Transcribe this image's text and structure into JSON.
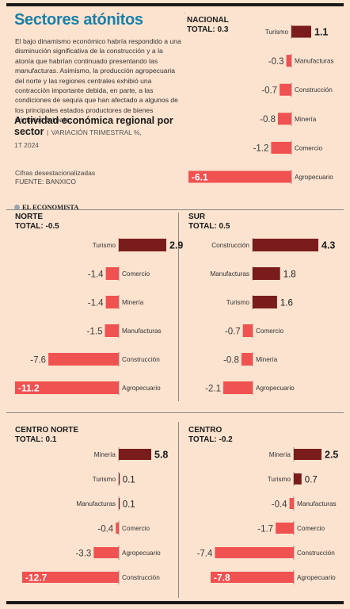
{
  "title": "Sectores atónitos",
  "intro": "El bajo dinamismo económico habría respondido a una disminución significativa de la construcción y a la atonía que habrían continuado presentando las manufacturas. Asimismo, la producción agropecuaria del norte y las regiones centrales exhibió una contracción importante debida, en parte, a las condiciones de sequía que han afectado a algunos de los principales estados productores de bienes primarios del país.",
  "subtitle": {
    "main": "Actividad económica regional por sector",
    "separator": "|",
    "unit": "VARIACIÓN TRIMESTRAL %,",
    "period": "1T 2024"
  },
  "note": {
    "line1": "Cifras desestacionalizadas",
    "line2": "FUENTE: BANXICO"
  },
  "brand": "EL ECONOMISTA",
  "colors": {
    "positive": "#7a1c1c",
    "negative": "#f05151",
    "title": "#1a7fa8",
    "background": "#fbe3cf"
  },
  "chart_data": [
    {
      "type": "bar",
      "region": "NACIONAL",
      "total_label": "TOTAL: 0.3",
      "categories": [
        "Turismo",
        "Manufacturas",
        "Construcción",
        "Minería",
        "Comercio",
        "Agropecuario"
      ],
      "values": [
        1.1,
        -0.3,
        -0.7,
        -0.8,
        -1.2,
        -6.1
      ],
      "labels": [
        "1.1",
        "-0.3",
        "-0.7",
        "-0.8",
        "-1.2",
        "-6.1"
      ]
    },
    {
      "type": "bar",
      "region": "NORTE",
      "total_label": "TOTAL: -0.5",
      "categories": [
        "Turismo",
        "Comercio",
        "Minería",
        "Manufacturas",
        "Construcción",
        "Agropecuario"
      ],
      "values": [
        2.9,
        -1.4,
        -1.4,
        -1.5,
        -7.6,
        -11.2
      ],
      "labels": [
        "2.9",
        "-1.4",
        "-1.4",
        "-1.5",
        "-7.6",
        "-11.2"
      ]
    },
    {
      "type": "bar",
      "region": "SUR",
      "total_label": "TOTAL: 0.5",
      "categories": [
        "Construcción",
        "Manufacturas",
        "Turismo",
        "Comercio",
        "Minería",
        "Agropecuario"
      ],
      "values": [
        4.3,
        1.8,
        1.6,
        -0.7,
        -0.8,
        -2.1
      ],
      "labels": [
        "4.3",
        "1.8",
        "1.6",
        "-0.7",
        "-0.8",
        "-2.1"
      ]
    },
    {
      "type": "bar",
      "region": "CENTRO NORTE",
      "total_label": "TOTAL: 0.1",
      "categories": [
        "Minería",
        "Turismo",
        "Manufacturas",
        "Comercio",
        "Agropecuario",
        "Construcción"
      ],
      "values": [
        5.8,
        0.1,
        0.1,
        -0.4,
        -3.3,
        -12.7
      ],
      "labels": [
        "5.8",
        "0.1",
        "0.1",
        "-0.4",
        "-3.3",
        "-12.7"
      ]
    },
    {
      "type": "bar",
      "region": "CENTRO",
      "total_label": "TOTAL: -0.2",
      "categories": [
        "Minería",
        "Turismo",
        "Manufacturas",
        "Comercio",
        "Construcción",
        "Agropecuario"
      ],
      "values": [
        2.5,
        0.7,
        -0.4,
        -1.7,
        -7.4,
        -7.8
      ],
      "labels": [
        "2.5",
        "0.7",
        "-0.4",
        "-1.7",
        "-7.4",
        "-7.8"
      ]
    }
  ]
}
